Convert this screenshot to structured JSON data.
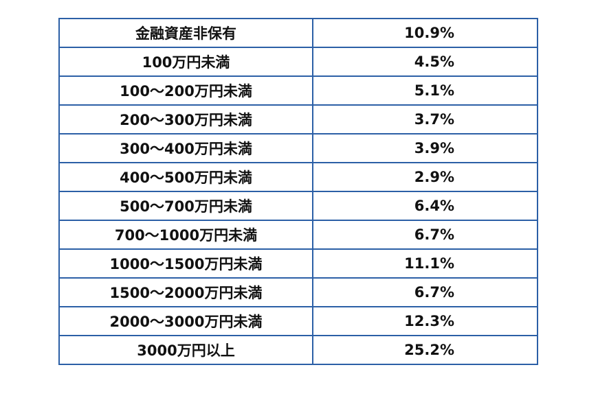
{
  "table": {
    "rows": [
      {
        "label": "金融資産非保有",
        "value": "10.9%"
      },
      {
        "label": "100万円未満",
        "value": "4.5%"
      },
      {
        "label": "100〜200万円未満",
        "value": "5.1%"
      },
      {
        "label": "200〜300万円未満",
        "value": "3.7%"
      },
      {
        "label": "300〜400万円未満",
        "value": "3.9%"
      },
      {
        "label": "400〜500万円未満",
        "value": "2.9%"
      },
      {
        "label": "500〜700万円未満",
        "value": "6.4%"
      },
      {
        "label": "700〜1000万円未満",
        "value": "6.7%"
      },
      {
        "label": "1000〜1500万円未満",
        "value": "11.1%"
      },
      {
        "label": "1500〜2000万円未満",
        "value": "6.7%"
      },
      {
        "label": "2000〜3000万円未満",
        "value": "12.3%"
      },
      {
        "label": "3000万円以上",
        "value": "25.2%"
      }
    ],
    "border_color": "#2b5fa6"
  }
}
